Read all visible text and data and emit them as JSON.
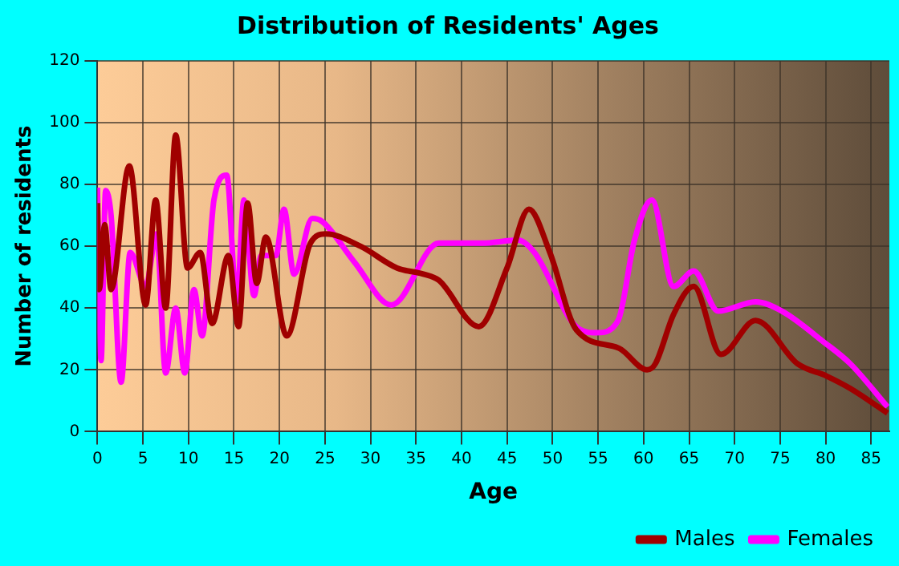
{
  "chart_data": {
    "type": "line",
    "title": "Distribution of Residents' Ages",
    "xlabel": "Age",
    "ylabel": "Number of residents",
    "xlim": [
      0,
      87
    ],
    "xticks": [
      0,
      5,
      10,
      15,
      20,
      25,
      30,
      35,
      40,
      45,
      50,
      55,
      60,
      65,
      70,
      75,
      80,
      85
    ],
    "ylim": [
      0,
      120
    ],
    "yticks": [
      0,
      20,
      40,
      60,
      80,
      100,
      120
    ],
    "grid": true,
    "legend": "bottom right",
    "marker": "none",
    "line_style": "solid",
    "series": [
      {
        "name": "Males",
        "color": "#a00000",
        "x": [
          0,
          0.2,
          0.8,
          1.5,
          3.5,
          5.3,
          6.4,
          7.5,
          8.6,
          9.9,
          11.3,
          12.6,
          14.4,
          15.5,
          16.5,
          17.5,
          18.5,
          20.8,
          23.4,
          25.1,
          28.9,
          32.9,
          35.8,
          37.5,
          41.9,
          45,
          47.4,
          49.7,
          52.6,
          57.3,
          60.4,
          61.3,
          63.3,
          65.5,
          68.5,
          72.3,
          76.9,
          80.1,
          82.7,
          86.8
        ],
        "values": [
          74,
          46,
          67,
          46,
          86,
          41,
          75,
          40,
          96,
          53,
          58,
          35,
          57,
          34,
          74,
          48,
          63,
          31,
          61,
          64,
          60,
          53,
          51,
          49,
          34,
          53,
          72,
          58,
          33,
          27,
          20,
          22,
          38,
          47,
          25,
          36,
          22,
          18,
          14,
          6
        ]
      },
      {
        "name": "Females",
        "color": "#ff00ff",
        "x": [
          0,
          0.4,
          0.9,
          1.5,
          2.6,
          3.6,
          5.3,
          6.5,
          7.5,
          8.6,
          9.6,
          10.6,
          11.5,
          12.8,
          14.2,
          15.3,
          16.1,
          17.2,
          18,
          19.6,
          20.5,
          21.6,
          23.6,
          24.7,
          28.2,
          32.3,
          37.5,
          42.2,
          46.2,
          48,
          52.6,
          54.9,
          57.2,
          59,
          60.9,
          63.3,
          65.5,
          68.2,
          72.3,
          75.2,
          79.8,
          82.7,
          86.8
        ],
        "values": [
          79,
          23,
          78,
          70,
          16,
          58,
          47,
          64,
          19,
          40,
          19,
          46,
          31,
          75,
          83,
          42,
          75,
          44,
          57,
          57,
          72,
          51,
          69,
          68,
          55,
          41,
          61,
          61,
          62,
          58,
          34,
          32,
          36,
          62,
          75,
          47,
          52,
          39,
          42,
          39,
          29,
          22,
          8
        ]
      }
    ]
  }
}
